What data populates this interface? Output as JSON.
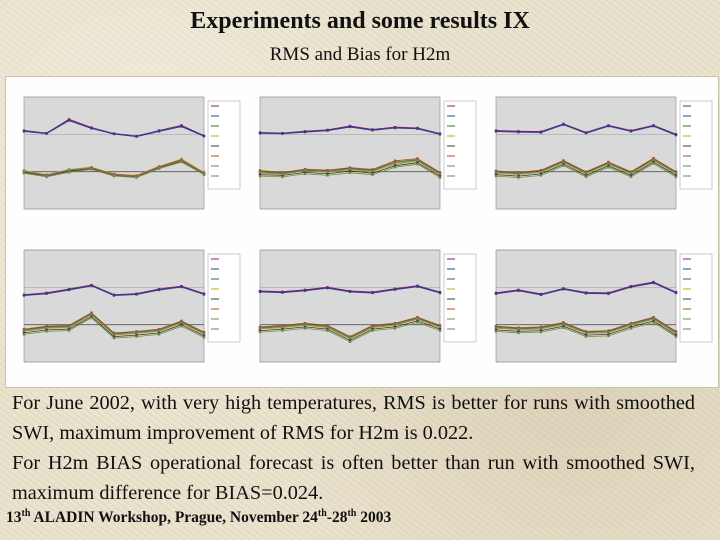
{
  "slide": {
    "title": "Experiments and some results IX",
    "subtitle": "RMS and Bias for H2m",
    "paragraph_1": "For June 2002, with very high temperatures, RMS is better for runs with smoothed SWI, maximum improvement of RMS for H2m is 0.022.",
    "paragraph_2": "For H2m BIAS operational forecast is often better than run with smoothed SWI, maximum difference for BIAS=0.024.",
    "footer": {
      "n1": "13",
      "s1": "th",
      "p1": " ALADIN Workshop, Prague, November 24",
      "s2": "th",
      "p2": "-28",
      "s3": "th",
      "p3": " 2003"
    }
  },
  "colors": {
    "rms": "#8b1a6b",
    "oper": "#2f3f8f",
    "bias": [
      "#1f7a2a",
      "#c9a400",
      "#3a3a3a",
      "#b04a1a",
      "#6b8f3a",
      "#7a7a7a",
      "#d24a8a",
      "#4aa0c0"
    ]
  },
  "chart_data": [
    {
      "type": "line",
      "x": [
        0,
        6,
        12,
        18,
        24,
        30,
        36,
        42,
        48
      ],
      "ylim": [
        -0.1,
        0.2
      ],
      "series": [
        {
          "values": [
            0.11,
            0.103,
            0.14,
            0.118,
            0.102,
            0.095,
            0.11,
            0.124,
            0.096
          ]
        },
        {
          "values": [
            0.108,
            0.102,
            0.137,
            0.116,
            0.101,
            0.094,
            0.108,
            0.121,
            0.095
          ]
        },
        {
          "values": [
            0.0,
            -0.01,
            0.003,
            0.01,
            -0.008,
            -0.012,
            0.012,
            0.031,
            -0.004
          ]
        },
        {
          "values": [
            0.003,
            -0.008,
            0.006,
            0.012,
            -0.006,
            -0.01,
            0.014,
            0.034,
            -0.002
          ]
        },
        {
          "values": [
            -0.002,
            -0.012,
            0.001,
            0.008,
            -0.01,
            -0.014,
            0.01,
            0.028,
            -0.006
          ]
        },
        {
          "values": [
            0.001,
            -0.009,
            0.004,
            0.011,
            -0.007,
            -0.011,
            0.013,
            0.032,
            -0.003
          ]
        },
        {
          "values": [
            -0.004,
            -0.014,
            -0.002,
            0.006,
            -0.012,
            -0.016,
            0.008,
            0.026,
            -0.008
          ]
        },
        {
          "values": [
            0.002,
            -0.011,
            0.005,
            0.009,
            -0.009,
            -0.013,
            0.011,
            0.03,
            -0.005
          ]
        }
      ]
    },
    {
      "type": "line",
      "x": [
        0,
        6,
        12,
        18,
        24,
        30,
        36,
        42,
        48
      ],
      "ylim": [
        -0.1,
        0.2
      ],
      "series": [
        {
          "values": [
            0.105,
            0.103,
            0.108,
            0.112,
            0.122,
            0.113,
            0.119,
            0.117,
            0.102
          ]
        },
        {
          "values": [
            0.103,
            0.102,
            0.106,
            0.11,
            0.12,
            0.111,
            0.117,
            0.115,
            0.1
          ]
        },
        {
          "values": [
            0.0,
            -0.004,
            0.005,
            0.002,
            0.009,
            0.004,
            0.026,
            0.032,
            -0.004
          ]
        },
        {
          "values": [
            -0.004,
            -0.007,
            0.002,
            -0.002,
            0.005,
            0.0,
            0.02,
            0.028,
            -0.008
          ]
        },
        {
          "values": [
            -0.008,
            -0.01,
            -0.002,
            -0.006,
            0.002,
            -0.004,
            0.016,
            0.024,
            -0.012
          ]
        },
        {
          "values": [
            0.003,
            -0.002,
            0.007,
            0.004,
            0.011,
            0.006,
            0.029,
            0.035,
            -0.002
          ]
        },
        {
          "values": [
            -0.012,
            -0.014,
            -0.006,
            -0.01,
            -0.003,
            -0.008,
            0.012,
            0.02,
            -0.016
          ]
        },
        {
          "values": [
            -0.002,
            -0.006,
            0.003,
            0.0,
            0.007,
            0.002,
            0.023,
            0.03,
            -0.006
          ]
        }
      ]
    },
    {
      "type": "line",
      "x": [
        0,
        6,
        12,
        18,
        24,
        30,
        36,
        42,
        48
      ],
      "ylim": [
        -0.1,
        0.2
      ],
      "series": [
        {
          "values": [
            0.11,
            0.108,
            0.107,
            0.128,
            0.105,
            0.124,
            0.11,
            0.124,
            0.1
          ]
        },
        {
          "values": [
            0.108,
            0.106,
            0.105,
            0.126,
            0.103,
            0.122,
            0.108,
            0.122,
            0.098
          ]
        },
        {
          "values": [
            0.0,
            -0.004,
            0.002,
            0.028,
            -0.002,
            0.024,
            -0.002,
            0.034,
            -0.002
          ]
        },
        {
          "values": [
            -0.004,
            -0.008,
            -0.002,
            0.024,
            -0.006,
            0.02,
            -0.006,
            0.03,
            -0.006
          ]
        },
        {
          "values": [
            -0.008,
            -0.012,
            -0.006,
            0.02,
            -0.01,
            0.016,
            -0.01,
            0.026,
            -0.01
          ]
        },
        {
          "values": [
            0.002,
            -0.002,
            0.004,
            0.03,
            0.0,
            0.026,
            0.0,
            0.036,
            0.0
          ]
        },
        {
          "values": [
            -0.012,
            -0.016,
            -0.01,
            0.016,
            -0.014,
            0.012,
            -0.014,
            0.022,
            -0.014
          ]
        },
        {
          "values": [
            -0.002,
            -0.006,
            0.0,
            0.026,
            -0.004,
            0.022,
            -0.004,
            0.032,
            -0.004
          ]
        }
      ]
    },
    {
      "type": "line",
      "x": [
        0,
        6,
        12,
        18,
        24,
        30,
        36,
        42,
        48
      ],
      "ylim": [
        -0.1,
        0.2
      ],
      "series": [
        {
          "values": [
            0.08,
            0.085,
            0.095,
            0.106,
            0.08,
            0.083,
            0.095,
            0.103,
            0.083
          ]
        },
        {
          "values": [
            0.078,
            0.083,
            0.093,
            0.104,
            0.078,
            0.081,
            0.093,
            0.101,
            0.081
          ]
        },
        {
          "values": [
            -0.014,
            -0.006,
            -0.004,
            0.03,
            -0.024,
            -0.02,
            -0.014,
            0.008,
            -0.022
          ]
        },
        {
          "values": [
            -0.018,
            -0.01,
            -0.008,
            0.026,
            -0.028,
            -0.024,
            -0.018,
            0.004,
            -0.026
          ]
        },
        {
          "values": [
            -0.022,
            -0.014,
            -0.012,
            0.022,
            -0.032,
            -0.028,
            -0.022,
            0.0,
            -0.03
          ]
        },
        {
          "values": [
            -0.012,
            -0.004,
            -0.002,
            0.032,
            -0.022,
            -0.018,
            -0.012,
            0.01,
            -0.02
          ]
        },
        {
          "values": [
            -0.026,
            -0.018,
            -0.016,
            0.018,
            -0.036,
            -0.032,
            -0.026,
            -0.004,
            -0.034
          ]
        },
        {
          "values": [
            -0.016,
            -0.008,
            -0.006,
            0.028,
            -0.026,
            -0.022,
            -0.016,
            0.006,
            -0.024
          ]
        }
      ]
    },
    {
      "type": "line",
      "x": [
        0,
        6,
        12,
        18,
        24,
        30,
        36,
        42,
        48
      ],
      "ylim": [
        -0.1,
        0.2
      ],
      "series": [
        {
          "values": [
            0.09,
            0.088,
            0.093,
            0.1,
            0.09,
            0.087,
            0.096,
            0.104,
            0.087
          ]
        },
        {
          "values": [
            0.088,
            0.086,
            0.091,
            0.098,
            0.088,
            0.085,
            0.094,
            0.102,
            0.085
          ]
        },
        {
          "values": [
            -0.008,
            -0.004,
            0.002,
            -0.004,
            -0.034,
            -0.004,
            0.002,
            0.018,
            -0.004
          ]
        },
        {
          "values": [
            -0.012,
            -0.008,
            -0.002,
            -0.008,
            -0.038,
            -0.008,
            -0.002,
            0.014,
            -0.008
          ]
        },
        {
          "values": [
            -0.016,
            -0.012,
            -0.006,
            -0.012,
            -0.042,
            -0.012,
            -0.006,
            0.01,
            -0.012
          ]
        },
        {
          "values": [
            -0.006,
            -0.002,
            0.004,
            -0.002,
            -0.032,
            -0.002,
            0.004,
            0.02,
            -0.002
          ]
        },
        {
          "values": [
            -0.02,
            -0.016,
            -0.01,
            -0.016,
            -0.046,
            -0.016,
            -0.01,
            0.006,
            -0.016
          ]
        },
        {
          "values": [
            -0.01,
            -0.006,
            0.0,
            -0.006,
            -0.036,
            -0.006,
            0.0,
            0.016,
            -0.006
          ]
        }
      ]
    },
    {
      "type": "line",
      "x": [
        0,
        6,
        12,
        18,
        24,
        30,
        36,
        42,
        48
      ],
      "ylim": [
        -0.1,
        0.2
      ],
      "series": [
        {
          "values": [
            0.085,
            0.093,
            0.082,
            0.097,
            0.086,
            0.085,
            0.103,
            0.114,
            0.087
          ]
        },
        {
          "values": [
            0.083,
            0.091,
            0.08,
            0.095,
            0.084,
            0.083,
            0.101,
            0.112,
            0.085
          ]
        },
        {
          "values": [
            -0.006,
            -0.01,
            -0.008,
            0.004,
            -0.02,
            -0.018,
            0.002,
            0.018,
            -0.02
          ]
        },
        {
          "values": [
            -0.01,
            -0.014,
            -0.012,
            0.0,
            -0.024,
            -0.022,
            -0.002,
            0.014,
            -0.024
          ]
        },
        {
          "values": [
            -0.014,
            -0.018,
            -0.016,
            -0.004,
            -0.028,
            -0.026,
            -0.006,
            0.01,
            -0.028
          ]
        },
        {
          "values": [
            -0.004,
            -0.008,
            -0.006,
            0.006,
            -0.018,
            -0.016,
            0.004,
            0.02,
            -0.018
          ]
        },
        {
          "values": [
            -0.018,
            -0.022,
            -0.02,
            -0.008,
            -0.032,
            -0.03,
            -0.01,
            0.006,
            -0.032
          ]
        },
        {
          "values": [
            -0.008,
            -0.012,
            -0.01,
            0.002,
            -0.022,
            -0.02,
            0.0,
            0.016,
            -0.022
          ]
        }
      ]
    }
  ]
}
